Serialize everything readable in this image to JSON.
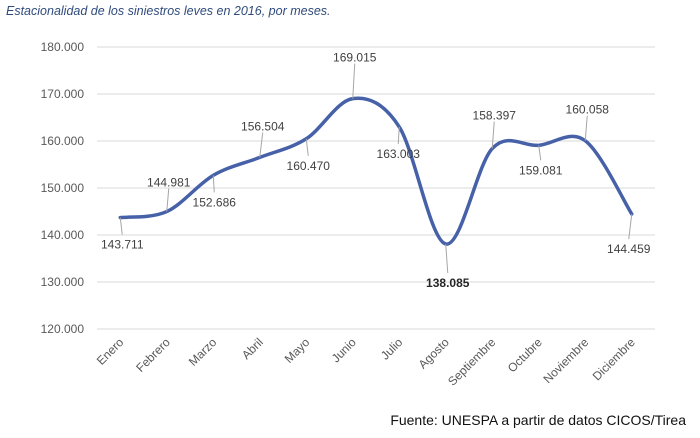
{
  "title": "Estacionalidad de los siniestros leves en 2016, por meses.",
  "source": "Fuente: UNESPA a partir de datos CICOS/Tirea",
  "chart_data": {
    "type": "line",
    "categories": [
      "Enero",
      "Febrero",
      "Marzo",
      "Abril",
      "Mayo",
      "Junio",
      "Julio",
      "Agosto",
      "Septiembre",
      "Octubre",
      "Noviembre",
      "Diciembre"
    ],
    "values": [
      143711,
      144981,
      152686,
      156504,
      160470,
      169015,
      163003,
      138085,
      158397,
      159081,
      160058,
      144459
    ],
    "labels": [
      "143.711",
      "144.981",
      "152.686",
      "156.504",
      "160.470",
      "169.015",
      "163.003",
      "138.085",
      "158.397",
      "159.081",
      "160.058",
      "144.459"
    ],
    "bold_labels": [
      "138.085"
    ],
    "yticks": [
      "120.000",
      "130.000",
      "140.000",
      "150.000",
      "160.000",
      "170.000",
      "180.000"
    ],
    "ylim": [
      120000,
      180000
    ],
    "grid": true,
    "line_color": "#4661a8"
  }
}
